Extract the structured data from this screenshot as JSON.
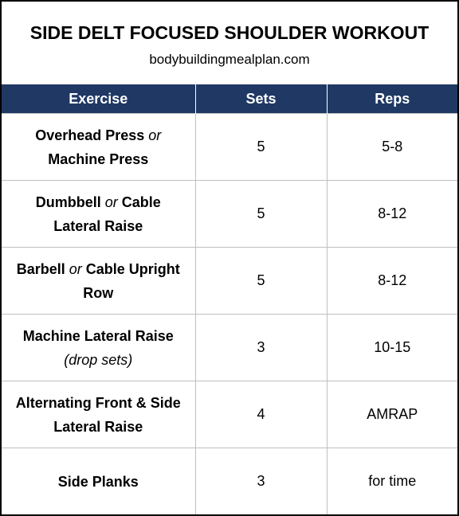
{
  "header": {
    "title": "SIDE DELT FOCUSED SHOULDER WORKOUT",
    "subtitle": "bodybuildingmealplan.com"
  },
  "table": {
    "columns": [
      "Exercise",
      "Sets",
      "Reps"
    ],
    "rows": [
      {
        "exercise": [
          [
            {
              "text": "Overhead Press"
            },
            {
              "text": "or",
              "italic": true
            }
          ],
          [
            {
              "text": "Machine Press"
            }
          ]
        ],
        "sets": "5",
        "reps": "5-8"
      },
      {
        "exercise": [
          [
            {
              "text": "Dumbbell"
            },
            {
              "text": "or",
              "italic": true
            },
            {
              "text": "Cable"
            }
          ],
          [
            {
              "text": "Lateral Raise"
            }
          ]
        ],
        "sets": "5",
        "reps": "8-12"
      },
      {
        "exercise": [
          [
            {
              "text": "Barbell"
            },
            {
              "text": "or",
              "italic": true
            },
            {
              "text": "Cable Upright"
            }
          ],
          [
            {
              "text": "Row"
            }
          ]
        ],
        "sets": "5",
        "reps": "8-12"
      },
      {
        "exercise": [
          [
            {
              "text": "Machine Lateral Raise"
            }
          ],
          [
            {
              "text": "(drop sets)",
              "italic": true
            }
          ]
        ],
        "sets": "3",
        "reps": "10-15"
      },
      {
        "exercise": [
          [
            {
              "text": "Alternating Front & Side"
            }
          ],
          [
            {
              "text": "Lateral Raise"
            }
          ]
        ],
        "sets": "4",
        "reps": "AMRAP"
      },
      {
        "exercise": [
          [
            {
              "text": "Side Planks"
            }
          ]
        ],
        "sets": "3",
        "reps": "for time"
      }
    ]
  }
}
